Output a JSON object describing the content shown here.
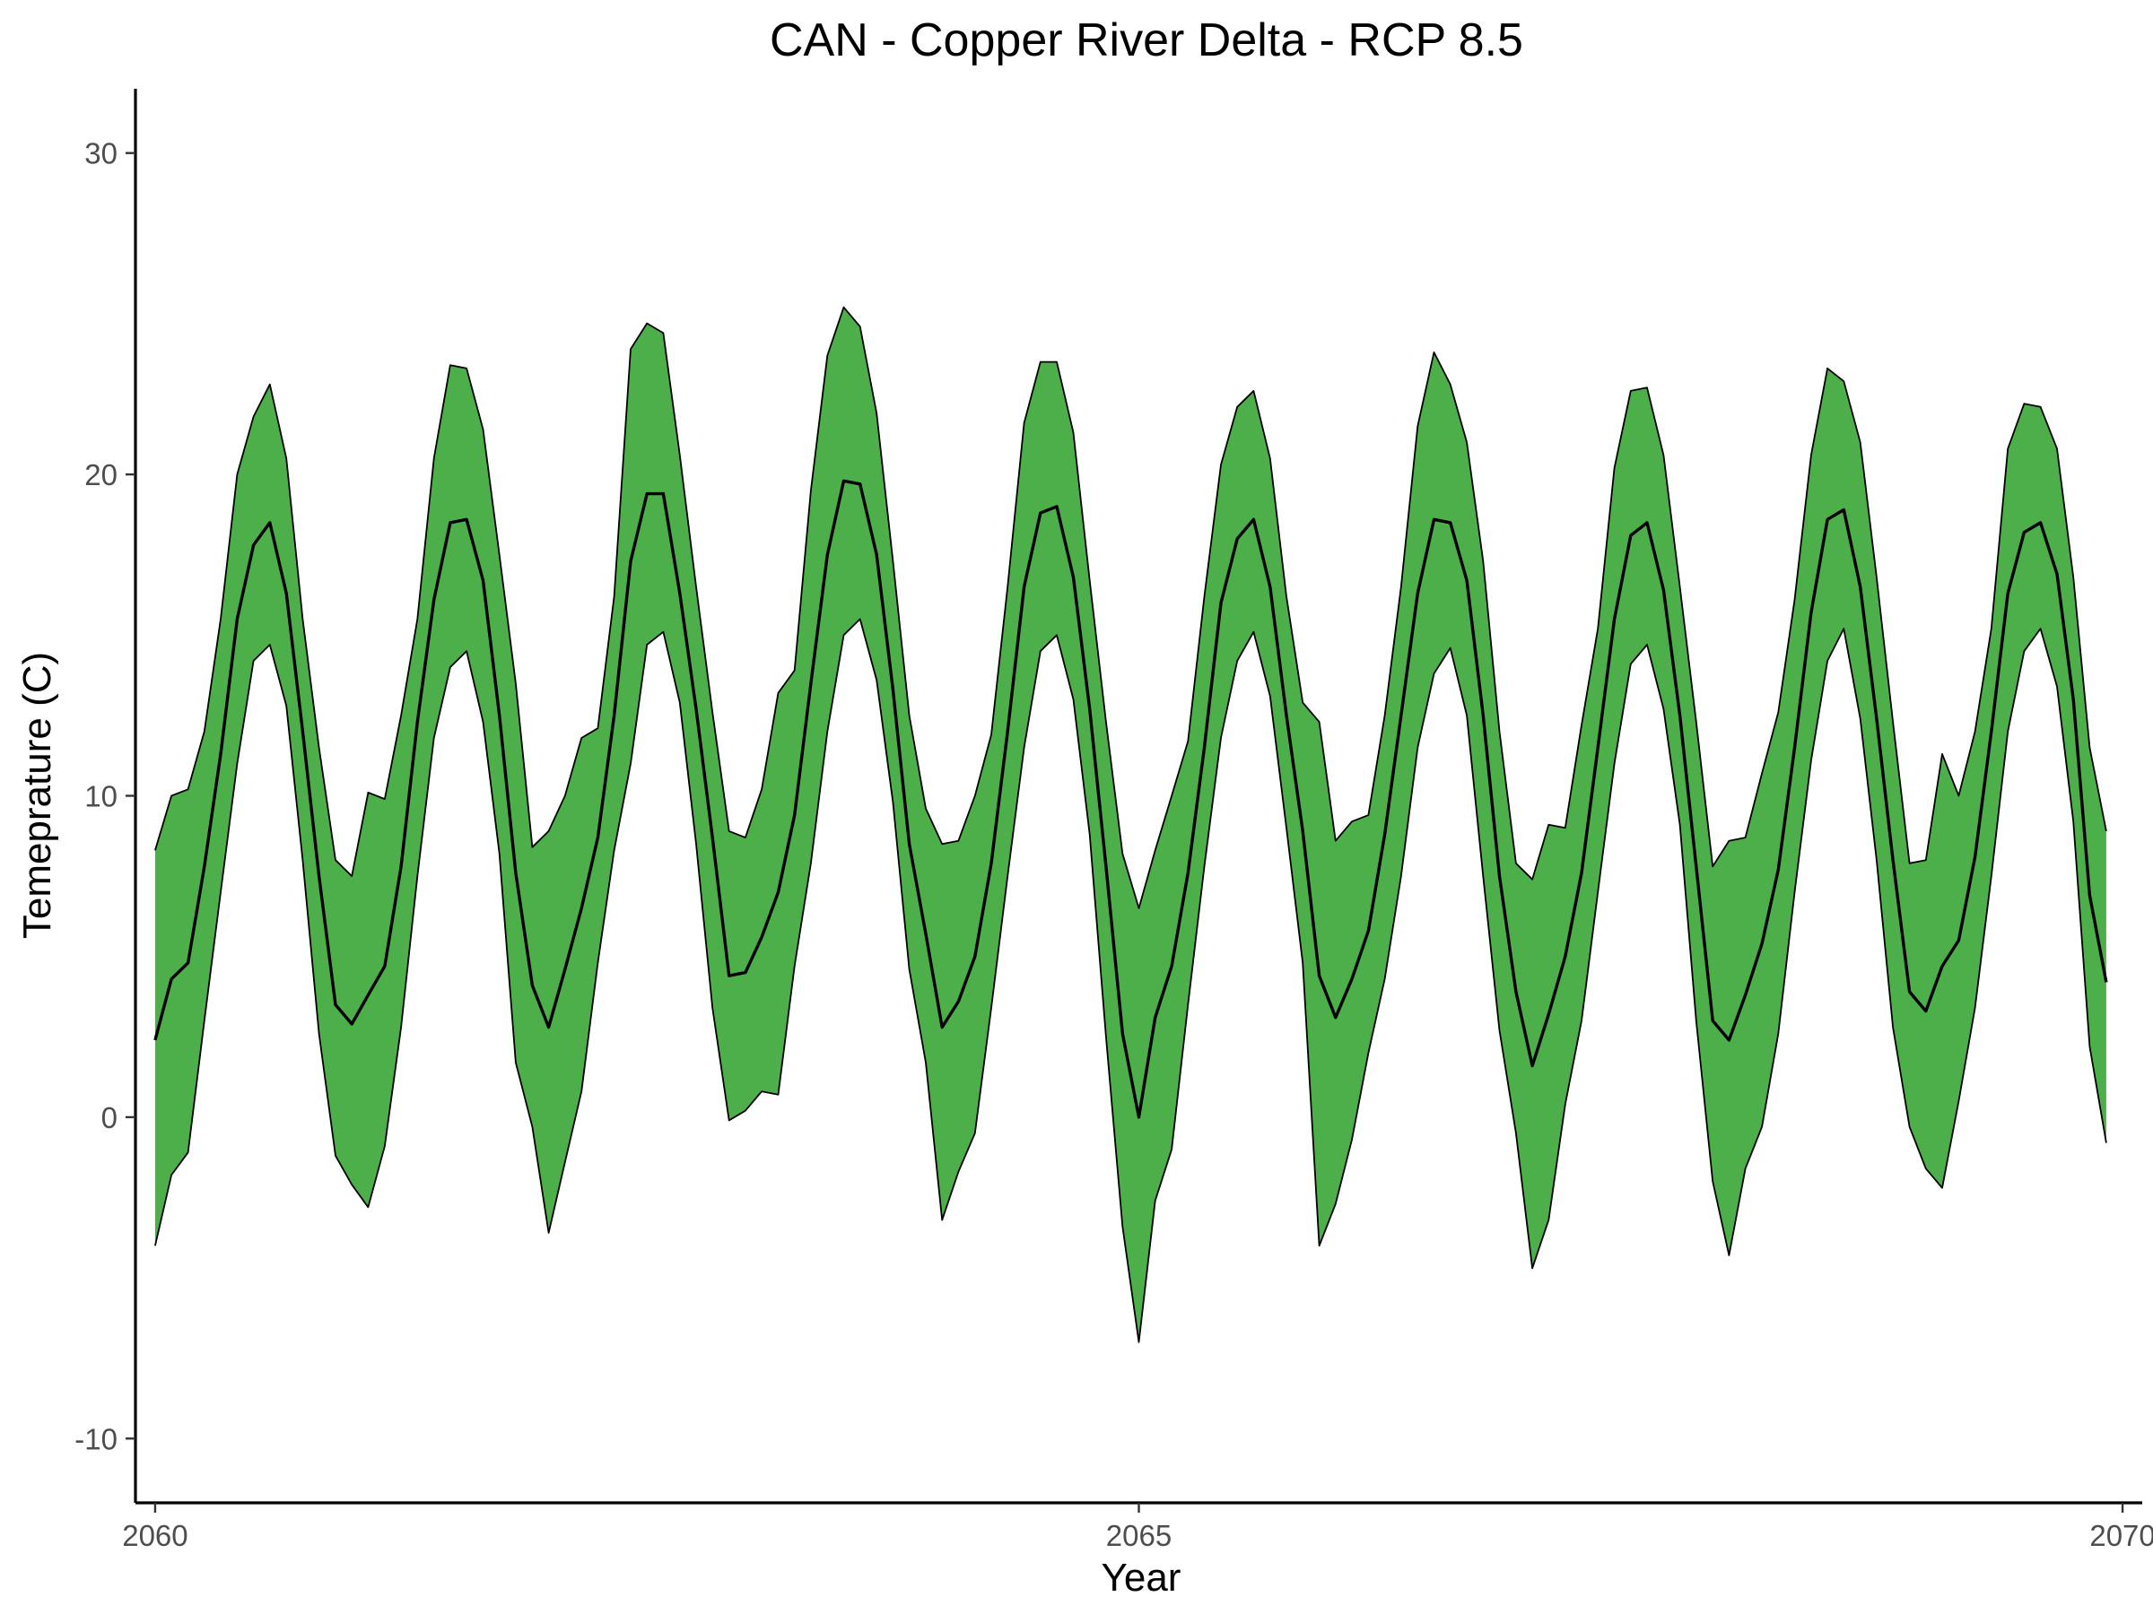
{
  "chart_data": {
    "type": "area",
    "title": "CAN - Copper River Delta - RCP 8.5",
    "xlabel": "Year",
    "ylabel": "Temeprature (C)",
    "xlim": [
      2059.9,
      2070.1
    ],
    "ylim": [
      -12,
      32
    ],
    "x_ticks": [
      2060,
      2065,
      2070
    ],
    "x_tick_labels": [
      "2060",
      "2065",
      "2070"
    ],
    "y_ticks": [
      -10,
      0,
      10,
      20,
      30
    ],
    "y_tick_labels": [
      "-10",
      "0",
      "10",
      "20",
      "30"
    ],
    "grid": false,
    "legend": "none",
    "colors": {
      "band_fill": "#4daf4a",
      "line": "#000000",
      "background": "#ffffff"
    },
    "x": [
      2060.0,
      2060.083,
      2060.167,
      2060.25,
      2060.333,
      2060.417,
      2060.5,
      2060.583,
      2060.667,
      2060.75,
      2060.833,
      2060.917,
      2061.0,
      2061.083,
      2061.167,
      2061.25,
      2061.333,
      2061.417,
      2061.5,
      2061.583,
      2061.667,
      2061.75,
      2061.833,
      2061.917,
      2062.0,
      2062.083,
      2062.167,
      2062.25,
      2062.333,
      2062.417,
      2062.5,
      2062.583,
      2062.667,
      2062.75,
      2062.833,
      2062.917,
      2063.0,
      2063.083,
      2063.167,
      2063.25,
      2063.333,
      2063.417,
      2063.5,
      2063.583,
      2063.667,
      2063.75,
      2063.833,
      2063.917,
      2064.0,
      2064.083,
      2064.167,
      2064.25,
      2064.333,
      2064.417,
      2064.5,
      2064.583,
      2064.667,
      2064.75,
      2064.833,
      2064.917,
      2065.0,
      2065.083,
      2065.167,
      2065.25,
      2065.333,
      2065.417,
      2065.5,
      2065.583,
      2065.667,
      2065.75,
      2065.833,
      2065.917,
      2066.0,
      2066.083,
      2066.167,
      2066.25,
      2066.333,
      2066.417,
      2066.5,
      2066.583,
      2066.667,
      2066.75,
      2066.833,
      2066.917,
      2067.0,
      2067.083,
      2067.167,
      2067.25,
      2067.333,
      2067.417,
      2067.5,
      2067.583,
      2067.667,
      2067.75,
      2067.833,
      2067.917,
      2068.0,
      2068.083,
      2068.167,
      2068.25,
      2068.333,
      2068.417,
      2068.5,
      2068.583,
      2068.667,
      2068.75,
      2068.833,
      2068.917,
      2069.0,
      2069.083,
      2069.167,
      2069.25,
      2069.333,
      2069.417,
      2069.5,
      2069.583,
      2069.667,
      2069.75,
      2069.833,
      2069.917
    ],
    "series": [
      {
        "role": "upper",
        "values": [
          8.3,
          10.0,
          10.2,
          12.0,
          15.5,
          20.0,
          21.8,
          22.8,
          20.5,
          15.5,
          11.5,
          8.0,
          7.5,
          10.1,
          9.9,
          12.5,
          15.5,
          20.5,
          23.4,
          23.3,
          21.4,
          17.5,
          13.5,
          8.4,
          8.9,
          10.0,
          11.8,
          12.1,
          16.2,
          23.9,
          24.7,
          24.4,
          20.6,
          16.5,
          12.6,
          8.9,
          8.7,
          10.2,
          13.2,
          13.9,
          19.5,
          23.7,
          25.2,
          24.6,
          21.9,
          17.3,
          12.5,
          9.6,
          8.5,
          8.6,
          10.0,
          11.9,
          16.5,
          21.6,
          23.5,
          23.5,
          21.3,
          16.7,
          12.3,
          8.2,
          6.5,
          8.3,
          10.0,
          11.7,
          16.2,
          20.3,
          22.1,
          22.6,
          20.5,
          16.2,
          12.9,
          12.3,
          8.6,
          9.2,
          9.4,
          12.5,
          16.5,
          21.5,
          23.8,
          22.8,
          21.0,
          17.3,
          12.0,
          7.9,
          7.4,
          9.1,
          9.0,
          12.2,
          15.2,
          20.2,
          22.6,
          22.7,
          20.6,
          16.5,
          12.3,
          7.8,
          8.6,
          8.7,
          10.7,
          12.6,
          16.1,
          20.6,
          23.3,
          22.9,
          21.0,
          16.8,
          12.3,
          7.9,
          8.0,
          11.3,
          10.0,
          12.0,
          15.2,
          20.8,
          22.2,
          22.1,
          20.8,
          16.8,
          11.5,
          8.9
        ]
      },
      {
        "role": "mean",
        "values": [
          2.4,
          4.3,
          4.8,
          7.8,
          11.3,
          15.5,
          17.8,
          18.5,
          16.3,
          12.0,
          7.5,
          3.5,
          2.9,
          3.8,
          4.7,
          7.8,
          12.3,
          16.1,
          18.5,
          18.6,
          16.7,
          12.5,
          7.6,
          4.1,
          2.8,
          4.6,
          6.5,
          8.7,
          12.5,
          17.3,
          19.4,
          19.4,
          16.3,
          12.7,
          8.7,
          4.4,
          4.5,
          5.6,
          7.0,
          9.4,
          13.5,
          17.5,
          19.8,
          19.7,
          17.5,
          13.3,
          8.5,
          5.7,
          2.8,
          3.6,
          5.0,
          7.9,
          12.0,
          16.5,
          18.8,
          19.0,
          16.8,
          12.7,
          7.8,
          2.6,
          0.0,
          3.1,
          4.7,
          7.6,
          11.5,
          16.0,
          18.0,
          18.6,
          16.5,
          12.5,
          8.9,
          4.4,
          3.1,
          4.3,
          5.8,
          8.8,
          12.5,
          16.3,
          18.6,
          18.5,
          16.7,
          12.5,
          7.5,
          3.9,
          1.6,
          3.2,
          5.0,
          7.6,
          11.5,
          15.5,
          18.1,
          18.5,
          16.4,
          12.5,
          7.8,
          3.0,
          2.4,
          3.8,
          5.4,
          7.7,
          11.5,
          15.7,
          18.6,
          18.9,
          16.5,
          12.4,
          8.0,
          3.9,
          3.3,
          4.7,
          5.5,
          8.1,
          12.0,
          16.3,
          18.2,
          18.5,
          16.9,
          13.0,
          6.9,
          4.2
        ]
      },
      {
        "role": "lower",
        "values": [
          -4.0,
          -1.8,
          -1.1,
          3.0,
          7.0,
          11.0,
          14.2,
          14.7,
          12.8,
          8.0,
          2.6,
          -1.2,
          -2.1,
          -2.8,
          -0.9,
          2.8,
          7.5,
          11.8,
          14.0,
          14.5,
          12.3,
          8.2,
          1.7,
          -0.3,
          -3.6,
          -1.4,
          0.8,
          4.8,
          8.3,
          11.0,
          14.7,
          15.1,
          12.9,
          8.5,
          3.4,
          -0.1,
          0.2,
          0.8,
          0.7,
          4.7,
          7.9,
          12.0,
          15.0,
          15.5,
          13.6,
          9.8,
          4.6,
          1.7,
          -3.2,
          -1.7,
          -0.5,
          3.4,
          7.5,
          11.5,
          14.5,
          15.0,
          13.0,
          8.8,
          2.5,
          -3.4,
          -7.0,
          -2.6,
          -1.0,
          3.5,
          7.8,
          11.8,
          14.2,
          15.1,
          13.1,
          9.0,
          4.8,
          -4.0,
          -2.7,
          -0.7,
          2.0,
          4.3,
          7.5,
          11.5,
          13.8,
          14.6,
          12.5,
          7.5,
          2.7,
          -0.5,
          -4.7,
          -3.2,
          0.4,
          3.0,
          7.0,
          11.0,
          14.1,
          14.7,
          12.7,
          9.1,
          3.0,
          -2.0,
          -4.3,
          -1.6,
          -0.3,
          2.6,
          7.0,
          11.1,
          14.2,
          15.2,
          12.4,
          8.0,
          2.8,
          -0.3,
          -1.6,
          -2.2,
          0.5,
          3.4,
          7.5,
          12.0,
          14.5,
          15.2,
          13.4,
          9.2,
          2.2,
          -0.8
        ]
      }
    ]
  }
}
